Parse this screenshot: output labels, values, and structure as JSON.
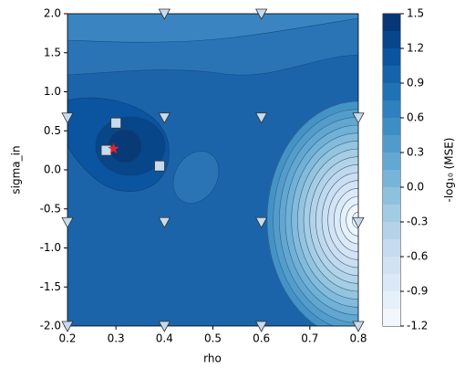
{
  "chart_data": {
    "type": "contour",
    "xlabel": "rho",
    "ylabel": "sigma_in",
    "xlim": [
      0.2,
      0.8
    ],
    "ylim": [
      -2.0,
      2.0
    ],
    "xticks": [
      0.2,
      0.3,
      0.4,
      0.5,
      0.6,
      0.7,
      0.8
    ],
    "yticks": [
      {
        "value": -2,
        "label": "-2.0"
      },
      -1.5,
      {
        "value": -1,
        "label": "-1.0"
      },
      -0.5,
      {
        "value": 0,
        "label": "0.0"
      },
      0.5,
      {
        "value": 1,
        "label": "1.0"
      },
      1.5,
      {
        "value": 2,
        "label": "2.0"
      }
    ],
    "colorbar": {
      "label": "-log₁₀ (MSE)",
      "lim": [
        -1.2,
        1.5
      ],
      "ticks": [
        -1.2,
        -0.9,
        -0.6,
        -0.3,
        {
          "value": 0,
          "label": "0.0"
        },
        0.3,
        0.6,
        0.9,
        1.2,
        1.5
      ],
      "levels": [
        -1.2,
        -1.05,
        -0.9,
        -0.75,
        -0.6,
        -0.45,
        -0.3,
        -0.15,
        0,
        0.15,
        0.3,
        0.45,
        0.6,
        0.75,
        0.9,
        1.05,
        1.2,
        1.35,
        1.5
      ],
      "cmap": [
        "#f7fbff",
        "#deebf7",
        "#c6dbef",
        "#9ecae1",
        "#6baed6",
        "#4292c6",
        "#2171b5",
        "#08519c",
        "#08306b"
      ]
    },
    "series": [
      {
        "marker": "triangle",
        "color": "#c6dbef",
        "x": [
          0.4,
          0.6,
          0.2,
          0.4,
          0.6,
          0.8,
          0.2,
          0.4,
          0.6,
          0.8,
          0.2,
          0.4,
          0.6,
          0.8
        ],
        "y": [
          2.0,
          2.0,
          0.67,
          0.67,
          0.67,
          0.67,
          -0.67,
          -0.67,
          -0.67,
          -0.67,
          -2.0,
          -2.0,
          -2.0,
          -2.0
        ]
      },
      {
        "marker": "square",
        "color": "#c6dbef",
        "x": [
          0.3,
          0.28,
          0.39
        ],
        "y": [
          0.6,
          0.25,
          0.05
        ]
      },
      {
        "marker": "star",
        "color": "#e8202a",
        "x": [
          0.295
        ],
        "y": [
          0.27
        ]
      }
    ]
  }
}
